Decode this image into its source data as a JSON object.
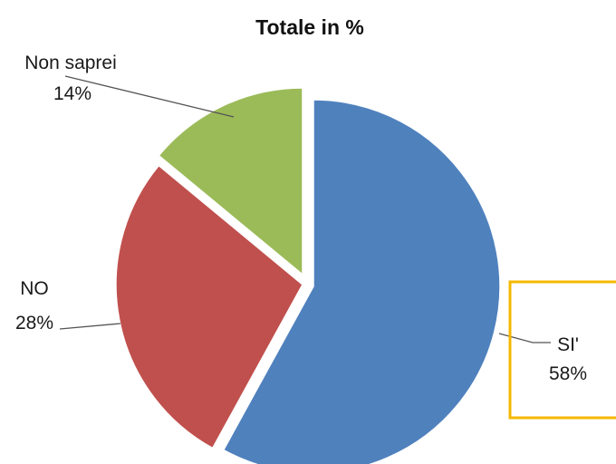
{
  "chart_data": {
    "type": "pie",
    "title": "Totale in %",
    "categories": [
      "SI'",
      "NO",
      "Non saprei"
    ],
    "values": [
      58,
      28,
      14
    ],
    "value_labels": [
      "58%",
      "28%",
      "14%"
    ],
    "colors": [
      "#4f81bd",
      "#c0504d",
      "#9bbb59"
    ],
    "exploded": true,
    "legend": "none",
    "data_labels": "outside with leader lines"
  },
  "highlight": {
    "color": "#f5b800"
  }
}
